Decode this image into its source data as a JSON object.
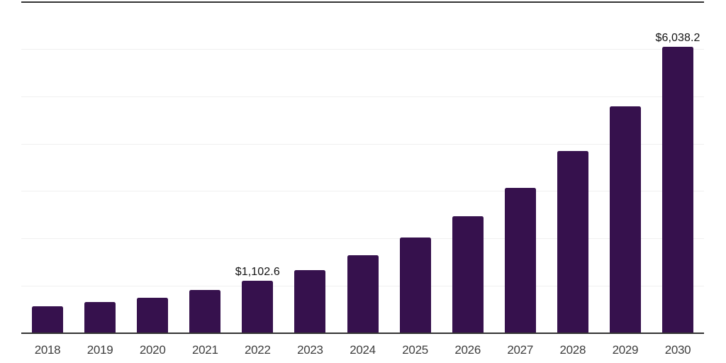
{
  "chart_data": {
    "type": "bar",
    "title": "",
    "xlabel": "",
    "ylabel": "",
    "categories": [
      "2018",
      "2019",
      "2020",
      "2021",
      "2022",
      "2023",
      "2024",
      "2025",
      "2026",
      "2027",
      "2028",
      "2029",
      "2030"
    ],
    "values": [
      565,
      665,
      750,
      915,
      1102.6,
      1335,
      1640,
      2020,
      2470,
      3065,
      3845,
      4790,
      6038.2
    ],
    "labeled_values_note": "only 2022 and 2030 carry visible data labels; other values estimated from bar heights against gridlines",
    "data_labels": [
      {
        "category": "2022",
        "text": "$1,102.6"
      },
      {
        "category": "2030",
        "text": "$6,038.2"
      }
    ],
    "ylim": [
      0,
      7000
    ],
    "grid_step": 1000,
    "grid": "horizontal",
    "y_tick_labels_visible": false,
    "legend_position": "none",
    "colors": {
      "bar": "#36114D",
      "axis_line": "#333333",
      "top_border": "#333333",
      "gridline": "#F0F0F0",
      "value_label": "#111111",
      "tick_label": "#3D3D3D",
      "background": "#FFFFFF"
    }
  }
}
